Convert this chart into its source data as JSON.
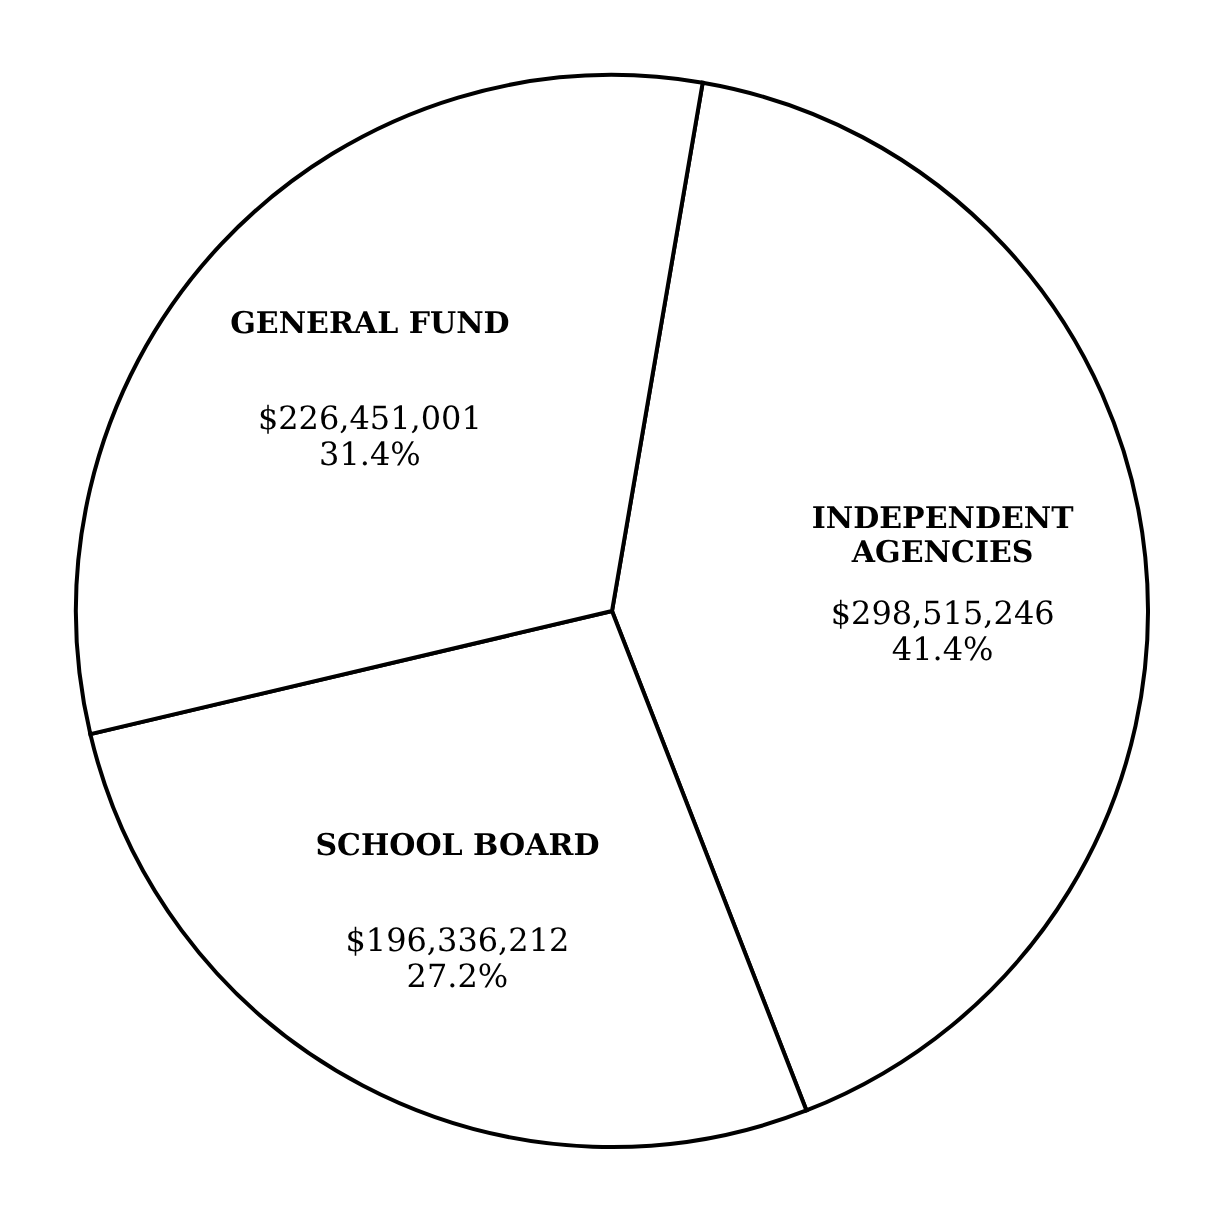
{
  "chart_data": {
    "type": "pie",
    "categories": [
      "INDEPENDENT AGENCIES",
      "SCHOOL BOARD",
      "GENERAL FUND"
    ],
    "values": [
      298515246,
      196336212,
      226451001
    ],
    "value_labels": [
      "$298,515,246\n41.4%",
      "$196,336,212\n27.2%",
      "$226,451,001\n31.4%"
    ],
    "colors": [
      "#ffffff",
      "#ffffff",
      "#ffffff"
    ]
  }
}
